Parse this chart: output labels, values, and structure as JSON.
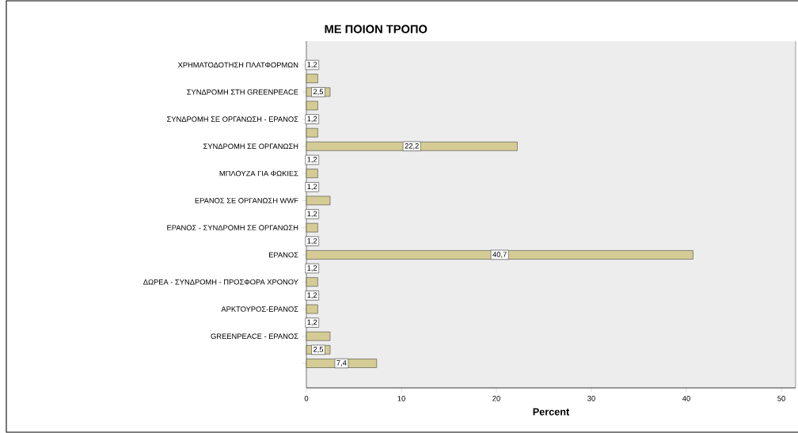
{
  "chart_data": {
    "type": "bar",
    "orientation": "horizontal",
    "title": "ΜΕ ΠΟΙΟΝ ΤΡΟΠΟ",
    "xlabel": "Percent",
    "categories": [
      "ΧΡΗΜΑΤΟΔΟΤΗΣΗ ΠΛΑΤΦΟΡΜΩΝ",
      null,
      "ΣΥΝΔΡΟΜΗ ΣΤΗ GREENPEACE",
      null,
      "ΣΥΝΔΡΟΜΗ ΣΕ ΟΡΓΑΝΩΣΗ - ΕΡΑΝΟΣ",
      null,
      "ΣΥΝΔΡΟΜΗ ΣΕ ΟΡΓΑΝΩΣΗ",
      null,
      "ΜΠΛΟΥΖΑ ΓΙΑ ΦΩΚΙΕΣ",
      null,
      "ΕΡΑΝΟΣ ΣΕ ΟΡΓΑΝΩΣΗ WWF",
      null,
      "ΕΡΑΝΟΣ - ΣΥΝΔΡΟΜΗ ΣΕ ΟΡΓΑΝΩΣΗ",
      null,
      "ΕΡΑΝΟΣ",
      null,
      "ΔΩΡΕΑ - ΣΥΝΔΡΟΜΗ - ΠΡΟΣΦΟΡΑ ΧΡΟΝΟΥ",
      null,
      "ΑΡΚΤΟΥΡΟΣ-ΕΡΑΝΟΣ",
      null,
      "GREENPEACE - ΕΡΑΝΟΣ",
      null,
      null
    ],
    "values": [
      1.2,
      1.2,
      2.5,
      1.2,
      1.2,
      1.2,
      22.2,
      1.2,
      1.2,
      1.2,
      2.5,
      1.2,
      1.2,
      1.2,
      40.7,
      1.2,
      1.2,
      1.2,
      1.2,
      1.2,
      2.5,
      2.5,
      7.4
    ],
    "value_labels": [
      "1,2",
      null,
      "2,5",
      null,
      "1,2",
      null,
      "22,2",
      "1,2",
      null,
      "1,2",
      null,
      "1,2",
      null,
      "1,2",
      "40,7",
      "1,2",
      null,
      "1,2",
      null,
      "1,2",
      null,
      "2,5",
      "7,4"
    ],
    "color": "#d4cc94",
    "xlim": [
      0,
      51.5
    ],
    "xticks": [
      0,
      10,
      20,
      30,
      40,
      50
    ]
  }
}
